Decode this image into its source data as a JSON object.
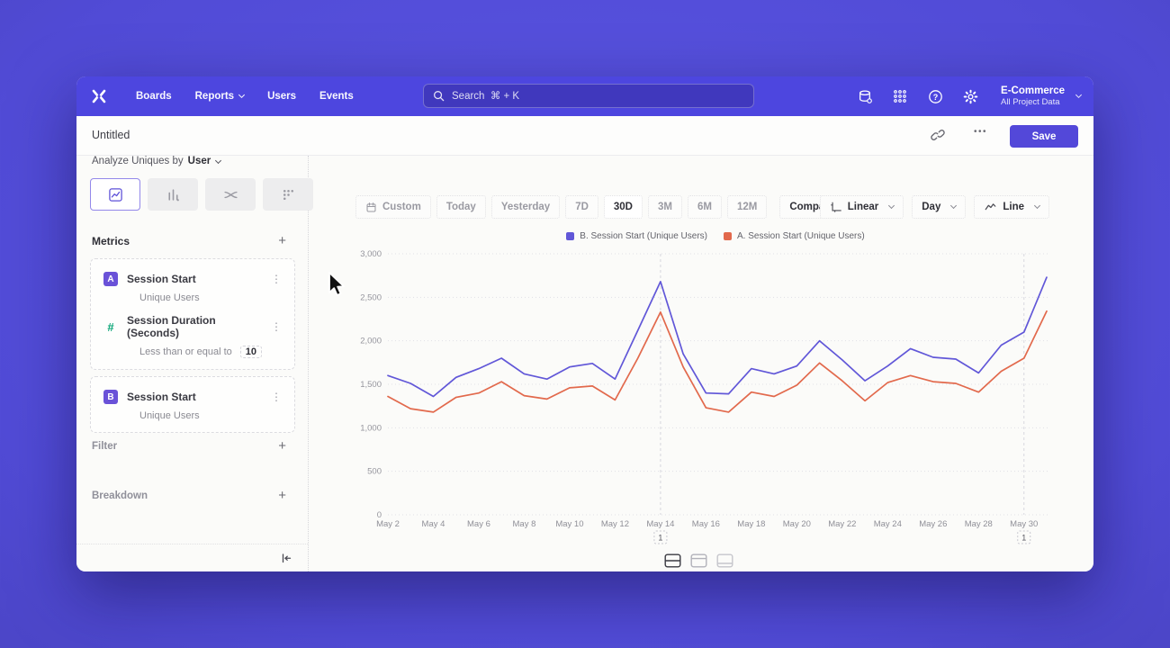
{
  "navbar": {
    "items": [
      {
        "label": "Boards",
        "chevron": false
      },
      {
        "label": "Reports",
        "chevron": true
      },
      {
        "label": "Users",
        "chevron": false
      },
      {
        "label": "Events",
        "chevron": false
      }
    ],
    "search_placeholder": "Search  ⌘ + K",
    "project_name": "E-Commerce",
    "project_subtitle": "All Project Data"
  },
  "header": {
    "title": "Untitled",
    "more_label": "•••",
    "save_label": "Save"
  },
  "sidebar": {
    "analyze_prefix": "Analyze Uniques by",
    "analyze_value": "User",
    "metrics_title": "Metrics",
    "metric_groups": [
      {
        "items": [
          {
            "badge": "A",
            "badge_style": "letter",
            "title": "Session Start",
            "subtitle": "Unique Users"
          },
          {
            "badge": "#",
            "badge_style": "hash",
            "title": "Session Duration (Seconds)",
            "subtitle": "Less than or equal to",
            "value": "10"
          }
        ]
      },
      {
        "items": [
          {
            "badge": "B",
            "badge_style": "letter",
            "title": "Session Start",
            "subtitle": "Unique Users"
          }
        ]
      }
    ],
    "filter_label": "Filter",
    "breakdown_label": "Breakdown"
  },
  "toolbar": {
    "date_ranges": [
      "Custom",
      "Today",
      "Yesterday",
      "7D",
      "30D",
      "3M",
      "6M",
      "12M"
    ],
    "selected_range": "30D",
    "compare_label": "Compare",
    "scale_label": "Linear",
    "granularity_label": "Day",
    "chart_type_label": "Line"
  },
  "chart_data": {
    "type": "line",
    "x": [
      "May 2",
      "May 3",
      "May 4",
      "May 5",
      "May 6",
      "May 7",
      "May 8",
      "May 9",
      "May 10",
      "May 11",
      "May 12",
      "May 13",
      "May 14",
      "May 15",
      "May 16",
      "May 17",
      "May 18",
      "May 19",
      "May 20",
      "May 21",
      "May 22",
      "May 23",
      "May 24",
      "May 25",
      "May 26",
      "May 27",
      "May 28",
      "May 29",
      "May 30",
      "May 31"
    ],
    "series": [
      {
        "name": "B. Session Start (Unique Users)",
        "color": "#6157d8",
        "values": [
          1600,
          1510,
          1360,
          1580,
          1680,
          1800,
          1620,
          1560,
          1700,
          1740,
          1560,
          2120,
          2680,
          1850,
          1400,
          1390,
          1680,
          1620,
          1710,
          2000,
          1780,
          1540,
          1710,
          1910,
          1810,
          1790,
          1630,
          1950,
          2100,
          2730
        ]
      },
      {
        "name": "A. Session Start (Unique Users)",
        "color": "#e2694c",
        "values": [
          1360,
          1220,
          1180,
          1350,
          1400,
          1530,
          1370,
          1330,
          1460,
          1480,
          1320,
          1800,
          2330,
          1700,
          1230,
          1180,
          1410,
          1360,
          1490,
          1745,
          1540,
          1310,
          1520,
          1600,
          1530,
          1510,
          1410,
          1650,
          1800,
          2340
        ]
      }
    ],
    "ylim": [
      0,
      3000
    ],
    "yticks": [
      0,
      500,
      1000,
      1500,
      2000,
      2500,
      3000
    ],
    "xtick_every": 2,
    "grid": "horizontal-dotted",
    "legend_position": "top-center",
    "annotations": [
      {
        "x": "May 14",
        "label": "1"
      },
      {
        "x": "May 30",
        "label": "1"
      }
    ]
  },
  "colors": {
    "navbar": "#4d46df",
    "accent": "#5348d9",
    "series_b": "#6157d8",
    "series_a": "#e2694c"
  }
}
